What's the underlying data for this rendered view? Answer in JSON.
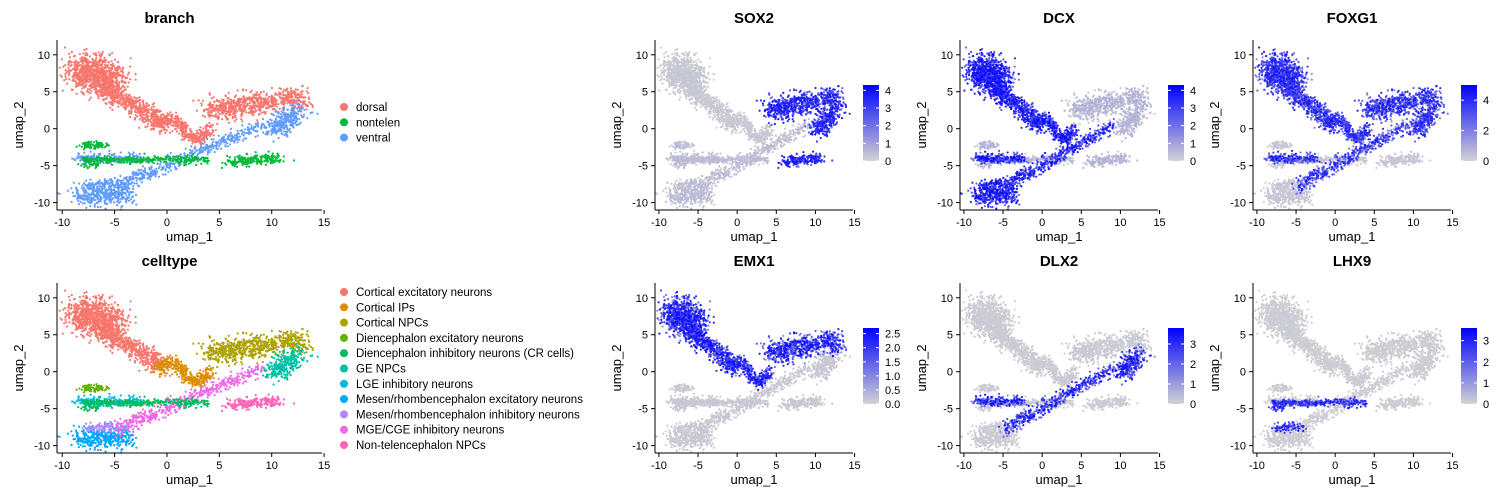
{
  "chart_data": [
    {
      "id": "branch",
      "type": "scatter",
      "title": "branch",
      "xlabel": "umap_1",
      "ylabel": "umap_2",
      "xlim": [
        -10.5,
        14.8
      ],
      "ylim": [
        -11,
        12
      ],
      "xticks": [
        -10,
        -5,
        0,
        5,
        10,
        15
      ],
      "yticks": [
        -10,
        -5,
        0,
        5,
        10
      ],
      "legend": "right",
      "series": [
        {
          "name": "dorsal",
          "color": "#F8766D"
        },
        {
          "name": "nontelen",
          "color": "#00BA38"
        },
        {
          "name": "ventral",
          "color": "#619CFF"
        }
      ]
    },
    {
      "id": "celltype",
      "type": "scatter",
      "title": "celltype",
      "xlabel": "umap_1",
      "ylabel": "umap_2",
      "xlim": [
        -10.5,
        14.8
      ],
      "ylim": [
        -11,
        12
      ],
      "xticks": [
        -10,
        -5,
        0,
        5,
        10,
        15
      ],
      "yticks": [
        -10,
        -5,
        0,
        5,
        10
      ],
      "legend": "right",
      "series": [
        {
          "name": "Cortical excitatory neurons",
          "color": "#F8766D"
        },
        {
          "name": "Cortical IPs",
          "color": "#DB8E00"
        },
        {
          "name": "Cortical NPCs",
          "color": "#AEA200"
        },
        {
          "name": "Diencephalon excitatory neurons",
          "color": "#64B200"
        },
        {
          "name": "Diencephalon inhibitory neurons (CR cells)",
          "color": "#00BD5C"
        },
        {
          "name": "GE NPCs",
          "color": "#00C1A7"
        },
        {
          "name": "LGE inhibitory neurons",
          "color": "#00BADE"
        },
        {
          "name": "Mesen/rhombencephalon excitatory neurons",
          "color": "#00A6FF"
        },
        {
          "name": "Mesen/rhombencephalon inhibitory neurons",
          "color": "#B385FF"
        },
        {
          "name": "MGE/CGE inhibitory neurons",
          "color": "#EF67EB"
        },
        {
          "name": "Non-telencephalon NPCs",
          "color": "#FF63B6"
        }
      ]
    },
    {
      "id": "SOX2",
      "type": "scatter",
      "title": "SOX2",
      "xlabel": "umap_1",
      "ylabel": "umap_2",
      "xlim": [
        -10.5,
        14.8
      ],
      "ylim": [
        -11,
        12
      ],
      "xticks": [
        -10,
        -5,
        0,
        5,
        10,
        15
      ],
      "yticks": [
        -10,
        -5,
        0,
        5,
        10
      ],
      "colorbar": {
        "low": "#D3D3D3",
        "high": "#0000FF",
        "ticks": [
          "4",
          "3",
          "2",
          "1",
          "0"
        ],
        "tick_values": [
          4,
          3,
          2,
          1,
          0
        ],
        "range": [
          0,
          4.3
        ]
      }
    },
    {
      "id": "DCX",
      "type": "scatter",
      "title": "DCX",
      "xlabel": "umap_1",
      "ylabel": "umap_2",
      "xlim": [
        -10.5,
        14.8
      ],
      "ylim": [
        -11,
        12
      ],
      "xticks": [
        -10,
        -5,
        0,
        5,
        10,
        15
      ],
      "yticks": [
        -10,
        -5,
        0,
        5,
        10
      ],
      "colorbar": {
        "low": "#D3D3D3",
        "high": "#0000FF",
        "ticks": [
          "4",
          "3",
          "2",
          "1",
          "0"
        ],
        "tick_values": [
          4,
          3,
          2,
          1,
          0
        ],
        "range": [
          0,
          4.3
        ]
      }
    },
    {
      "id": "FOXG1",
      "type": "scatter",
      "title": "FOXG1",
      "xlabel": "umap_1",
      "ylabel": "umap_2",
      "xlim": [
        -10.5,
        14.8
      ],
      "ylim": [
        -11,
        12
      ],
      "xticks": [
        -10,
        -5,
        0,
        5,
        10,
        15
      ],
      "yticks": [
        -10,
        -5,
        0,
        5,
        10
      ],
      "colorbar": {
        "low": "#D3D3D3",
        "high": "#0000FF",
        "ticks": [
          "4",
          "2",
          "0"
        ],
        "tick_values": [
          4,
          2,
          0
        ],
        "range": [
          0,
          5
        ]
      }
    },
    {
      "id": "EMX1",
      "type": "scatter",
      "title": "EMX1",
      "xlabel": "umap_1",
      "ylabel": "umap_2",
      "xlim": [
        -10.5,
        14.8
      ],
      "ylim": [
        -11,
        12
      ],
      "xticks": [
        -10,
        -5,
        0,
        5,
        10,
        15
      ],
      "yticks": [
        -10,
        -5,
        0,
        5,
        10
      ],
      "colorbar": {
        "low": "#D3D3D3",
        "high": "#0000FF",
        "ticks": [
          "2.5",
          "2.0",
          "1.5",
          "1.0",
          "0.5",
          "0.0"
        ],
        "tick_values": [
          2.5,
          2.0,
          1.5,
          1.0,
          0.5,
          0.0
        ],
        "range": [
          0,
          2.7
        ]
      }
    },
    {
      "id": "DLX2",
      "type": "scatter",
      "title": "DLX2",
      "xlabel": "umap_1",
      "ylabel": "umap_2",
      "xlim": [
        -10.5,
        14.8
      ],
      "ylim": [
        -11,
        12
      ],
      "xticks": [
        -10,
        -5,
        0,
        5,
        10,
        15
      ],
      "yticks": [
        -10,
        -5,
        0,
        5,
        10
      ],
      "colorbar": {
        "low": "#D3D3D3",
        "high": "#0000FF",
        "ticks": [
          "3",
          "2",
          "1",
          "0"
        ],
        "tick_values": [
          3,
          2,
          1,
          0
        ],
        "range": [
          0,
          3.8
        ]
      }
    },
    {
      "id": "LHX9",
      "type": "scatter",
      "title": "LHX9",
      "xlabel": "umap_1",
      "ylabel": "umap_2",
      "xlim": [
        -10.5,
        14.8
      ],
      "ylim": [
        -11,
        12
      ],
      "xticks": [
        -10,
        -5,
        0,
        5,
        10,
        15
      ],
      "yticks": [
        -10,
        -5,
        0,
        5,
        10
      ],
      "colorbar": {
        "low": "#D3D3D3",
        "high": "#0000FF",
        "ticks": [
          "3",
          "2",
          "1",
          "0"
        ],
        "tick_values": [
          3,
          2,
          1,
          0
        ],
        "range": [
          0,
          3.6
        ]
      }
    }
  ]
}
